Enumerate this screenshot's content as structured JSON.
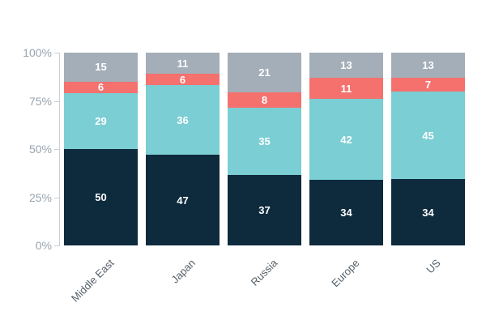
{
  "chart_data": {
    "type": "bar",
    "stacked": true,
    "percent": true,
    "title": "",
    "xlabel": "",
    "ylabel": "",
    "legend": "none",
    "grid": false,
    "categories": [
      "Middle East",
      "Japan",
      "Russia",
      "Europe",
      "US"
    ],
    "series": [
      {
        "name": "segment-bottom-navy",
        "color": "#0e2a3d",
        "values": [
          50,
          47,
          37,
          34,
          34
        ]
      },
      {
        "name": "segment-teal",
        "color": "#7bced3",
        "values": [
          29,
          36,
          35,
          42,
          45
        ]
      },
      {
        "name": "segment-coral",
        "color": "#f4716e",
        "values": [
          6,
          6,
          8,
          11,
          7
        ]
      },
      {
        "name": "segment-top-gray",
        "color": "#a3aeb8",
        "values": [
          15,
          11,
          21,
          13,
          13
        ]
      }
    ],
    "yticks": [
      "0%",
      "25%",
      "50%",
      "75%",
      "100%"
    ],
    "ytick_values": [
      0,
      25,
      50,
      75,
      100
    ],
    "ylim": [
      0,
      100
    ]
  },
  "colors": {
    "background": "#ffffff",
    "axis_line": "#c9cfd5",
    "ytick_label": "#98a4b0",
    "category_label": "#556069",
    "value_label": "#ffffff"
  }
}
